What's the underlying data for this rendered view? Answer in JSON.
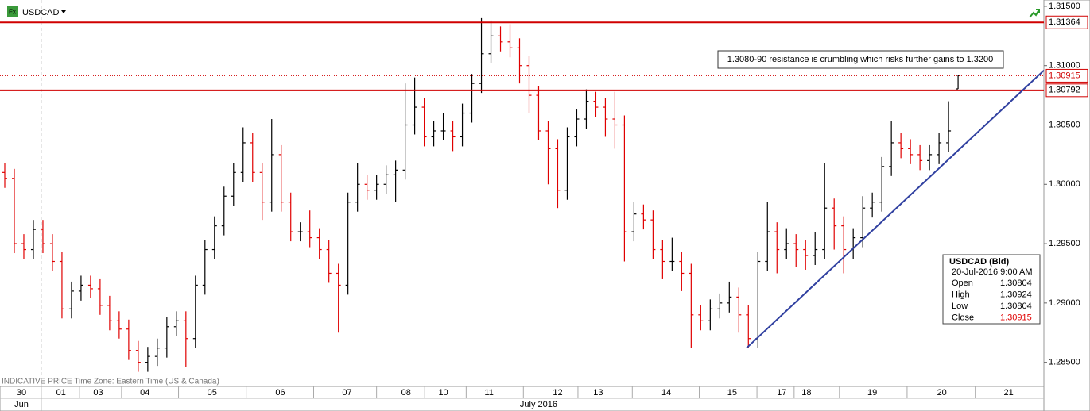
{
  "chart_data": {
    "type": "ohlc",
    "symbol": "USDCAD",
    "footer": "INDICATIVE PRICE   Time Zone: Eastern Time (US & Canada)",
    "annotation": "1.3080-90 resistance is crumbling which risks further gains to 1.3200",
    "up_color": "#000000",
    "down_color": "#e00000",
    "x": [
      0,
      1,
      2,
      3,
      4,
      5,
      6,
      7,
      8,
      9,
      10,
      11,
      12,
      13,
      14,
      15,
      16,
      17,
      18,
      19,
      20,
      21,
      22,
      23,
      24,
      25,
      26,
      27,
      28,
      29,
      30,
      31,
      32,
      33,
      34,
      35,
      36,
      37,
      38,
      39,
      40,
      41,
      42,
      43,
      44,
      45,
      46,
      47,
      48,
      49,
      50,
      51,
      52,
      53,
      54,
      55,
      56,
      57,
      58,
      59,
      60,
      61,
      62,
      63,
      64,
      65,
      66,
      67,
      68,
      69,
      70,
      71,
      72,
      73,
      74,
      75,
      76,
      77,
      78,
      79,
      80,
      81,
      82,
      83,
      84,
      85,
      86,
      87,
      88,
      89,
      90,
      91,
      92,
      93,
      94,
      95,
      96,
      97,
      98,
      99,
      100
    ],
    "open": [
      1.301,
      1.3005,
      1.295,
      1.2945,
      1.2962,
      1.295,
      1.2935,
      1.2895,
      1.291,
      1.2915,
      1.2912,
      1.2898,
      1.2885,
      1.2878,
      1.286,
      1.285,
      1.2855,
      1.2862,
      1.288,
      1.2885,
      1.287,
      1.2915,
      1.2945,
      1.2965,
      1.299,
      1.301,
      1.3035,
      1.301,
      1.2985,
      1.3025,
      1.2985,
      1.296,
      1.296,
      1.2955,
      1.2945,
      1.2925,
      1.2915,
      1.2985,
      1.3,
      1.2995,
      1.3,
      1.3008,
      1.3012,
      1.305,
      1.3065,
      1.304,
      1.3045,
      1.3045,
      1.304,
      1.306,
      1.3085,
      1.311,
      1.3125,
      1.312,
      1.3115,
      1.31,
      1.3075,
      1.3045,
      1.303,
      1.2995,
      1.304,
      1.3055,
      1.307,
      1.3065,
      1.3055,
      1.305,
      1.296,
      1.2975,
      1.297,
      1.2945,
      1.2935,
      1.2935,
      1.2925,
      1.289,
      1.2885,
      1.2895,
      1.29,
      1.2905,
      1.289,
      1.287,
      1.2935,
      1.296,
      1.2945,
      1.295,
      1.2945,
      1.294,
      1.2945,
      1.298,
      1.2965,
      1.2945,
      1.2955,
      1.298,
      1.2985,
      1.3015,
      1.3035,
      1.303,
      1.3025,
      1.302,
      1.3025,
      1.3035,
      1.30804
    ],
    "high": [
      1.3018,
      1.3013,
      1.2958,
      1.297,
      1.297,
      1.2958,
      1.2943,
      1.2918,
      1.2923,
      1.2923,
      1.292,
      1.2906,
      1.2893,
      1.2886,
      1.2868,
      1.2863,
      1.287,
      1.2888,
      1.2893,
      1.2893,
      1.2923,
      1.2953,
      1.2973,
      1.2998,
      1.3018,
      1.3048,
      1.3043,
      1.3018,
      1.3055,
      1.3033,
      1.2993,
      1.2968,
      1.2978,
      1.2963,
      1.2953,
      1.2933,
      1.2993,
      1.3018,
      1.3008,
      1.3008,
      1.3016,
      1.302,
      1.3085,
      1.309,
      1.3073,
      1.3053,
      1.306,
      1.3053,
      1.3068,
      1.3093,
      1.314,
      1.3138,
      1.3133,
      1.3135,
      1.3123,
      1.3108,
      1.3083,
      1.3053,
      1.3038,
      1.3048,
      1.3063,
      1.308,
      1.3078,
      1.3073,
      1.3078,
      1.3058,
      1.2985,
      1.2983,
      1.2978,
      1.2953,
      1.2955,
      1.2943,
      1.2933,
      1.2898,
      1.2903,
      1.2908,
      1.2918,
      1.2913,
      1.2898,
      1.2943,
      1.2985,
      1.2968,
      1.2963,
      1.2958,
      1.2953,
      1.296,
      1.3018,
      1.2988,
      1.2973,
      1.2963,
      1.299,
      1.2993,
      1.3023,
      1.3053,
      1.3043,
      1.3038,
      1.3033,
      1.3033,
      1.3043,
      1.307,
      1.30924
    ],
    "low": [
      1.2997,
      1.2942,
      1.2937,
      1.2937,
      1.2942,
      1.2927,
      1.2887,
      1.2887,
      1.2902,
      1.2904,
      1.289,
      1.2877,
      1.287,
      1.2852,
      1.2842,
      1.2842,
      1.2847,
      1.2854,
      1.2872,
      1.2846,
      1.2862,
      1.2907,
      1.2937,
      1.2957,
      1.2982,
      1.3002,
      1.3002,
      1.297,
      1.2977,
      1.2977,
      1.2952,
      1.2952,
      1.2947,
      1.2937,
      1.2917,
      1.2875,
      1.2907,
      1.2977,
      1.2987,
      1.2987,
      1.2992,
      1.2985,
      1.3004,
      1.3042,
      1.3032,
      1.3032,
      1.3037,
      1.3028,
      1.3032,
      1.3052,
      1.3077,
      1.3102,
      1.3112,
      1.3107,
      1.3085,
      1.306,
      1.3037,
      1.3,
      1.298,
      1.2987,
      1.3032,
      1.3047,
      1.3057,
      1.304,
      1.303,
      1.2935,
      1.2952,
      1.2962,
      1.2937,
      1.292,
      1.2927,
      1.291,
      1.2862,
      1.2877,
      1.2877,
      1.2887,
      1.2892,
      1.2875,
      1.2862,
      1.2862,
      1.2927,
      1.2925,
      1.2937,
      1.293,
      1.2928,
      1.2932,
      1.2937,
      1.2945,
      1.2925,
      1.2937,
      1.2947,
      1.2972,
      1.2977,
      1.3007,
      1.3022,
      1.3017,
      1.3012,
      1.3012,
      1.3017,
      1.3027,
      1.30804
    ],
    "close": [
      1.3005,
      1.295,
      1.2945,
      1.2962,
      1.295,
      1.2935,
      1.2895,
      1.291,
      1.2915,
      1.2912,
      1.2898,
      1.2885,
      1.2878,
      1.286,
      1.285,
      1.2855,
      1.2862,
      1.288,
      1.2885,
      1.287,
      1.2915,
      1.2945,
      1.2965,
      1.299,
      1.301,
      1.3035,
      1.301,
      1.2985,
      1.3025,
      1.2985,
      1.296,
      1.296,
      1.2955,
      1.2945,
      1.2925,
      1.2915,
      1.2985,
      1.3,
      1.2995,
      1.3,
      1.3008,
      1.3012,
      1.305,
      1.3065,
      1.304,
      1.3045,
      1.3045,
      1.304,
      1.306,
      1.3085,
      1.311,
      1.3125,
      1.312,
      1.3115,
      1.31,
      1.3075,
      1.3045,
      1.303,
      1.2995,
      1.304,
      1.3055,
      1.307,
      1.3065,
      1.3055,
      1.305,
      1.296,
      1.2975,
      1.297,
      1.2945,
      1.2935,
      1.2935,
      1.2925,
      1.289,
      1.2885,
      1.2895,
      1.29,
      1.2905,
      1.289,
      1.287,
      1.2935,
      1.296,
      1.2945,
      1.295,
      1.2945,
      1.294,
      1.2945,
      1.298,
      1.2965,
      1.2945,
      1.2955,
      1.298,
      1.2985,
      1.3015,
      1.3035,
      1.303,
      1.3025,
      1.302,
      1.3025,
      1.3035,
      1.3045,
      1.30915
    ],
    "hlines": [
      {
        "value": 1.31364,
        "color": "#d00000",
        "style": "solid"
      },
      {
        "value": 1.30792,
        "color": "#d00000",
        "style": "solid"
      },
      {
        "value": 1.30915,
        "color": "#d00000",
        "style": "dotted"
      }
    ],
    "trendline": {
      "x": [
        77.8,
        109
      ],
      "y": [
        1.2862,
        1.3096
      ],
      "color": "#3040a0"
    },
    "xlim": [
      -0.5,
      109
    ],
    "ylim": [
      1.28297,
      1.31553
    ],
    "yticks": [
      {
        "value": 1.315,
        "label": "1.31500"
      },
      {
        "value": 1.31,
        "label": "1.31000"
      },
      {
        "value": 1.305,
        "label": "1.30500"
      },
      {
        "value": 1.3,
        "label": "1.30000"
      },
      {
        "value": 1.295,
        "label": "1.29500"
      },
      {
        "value": 1.29,
        "label": "1.29000"
      },
      {
        "value": 1.285,
        "label": "1.28500"
      }
    ],
    "xticks": [
      {
        "value": 1.75,
        "label": "30"
      },
      {
        "value": 5.9,
        "label": "01"
      },
      {
        "value": 9.8,
        "label": "03"
      },
      {
        "value": 14.7,
        "label": "04"
      },
      {
        "value": 21.75,
        "label": "05"
      },
      {
        "value": 28.9,
        "label": "06"
      },
      {
        "value": 35.9,
        "label": "07"
      },
      {
        "value": 42.1,
        "label": "08"
      },
      {
        "value": 46,
        "label": "10"
      },
      {
        "value": 50.8,
        "label": "11"
      },
      {
        "value": 58,
        "label": "12"
      },
      {
        "value": 62.25,
        "label": "13"
      },
      {
        "value": 69.4,
        "label": "14"
      },
      {
        "value": 76.3,
        "label": "15"
      },
      {
        "value": 81.5,
        "label": "17"
      },
      {
        "value": 84.1,
        "label": "18"
      },
      {
        "value": 91,
        "label": "19"
      },
      {
        "value": 98.3,
        "label": "20"
      },
      {
        "value": 105.3,
        "label": "21"
      }
    ],
    "months": [
      {
        "value": 1.75,
        "label": "Jun"
      },
      {
        "value": 56,
        "label": "July 2016"
      }
    ],
    "info": {
      "title": "USDCAD (Bid)",
      "date": "20-Jul-2016 9:00 AM",
      "rows": [
        [
          "Open",
          1.30804
        ],
        [
          "High",
          1.30924
        ],
        [
          "Low",
          1.30804
        ],
        [
          "Close",
          1.30915
        ]
      ]
    }
  }
}
